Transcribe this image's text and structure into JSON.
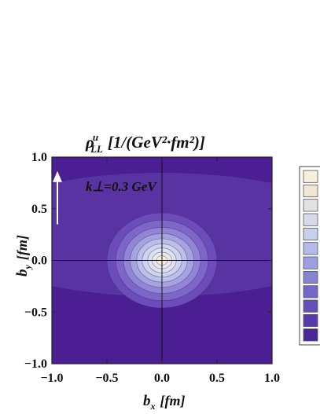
{
  "chart_data": {
    "type": "heatmap",
    "title": "ρ_LL^u [1/(GeV²·fm²)]",
    "title_parts": {
      "symbol": "ρ",
      "superscript": "u",
      "subscript": "LL",
      "unit": "[1/(GeV²·fm²)]"
    },
    "xlabel": "b_x [fm]",
    "ylabel": "b_y [fm]",
    "xlabel_parts": {
      "symbol": "b",
      "subscript": "x",
      "unit": "[fm]"
    },
    "ylabel_parts": {
      "symbol": "b",
      "subscript": "y",
      "unit": "[fm]"
    },
    "xlim": [
      -1.0,
      1.0
    ],
    "ylim": [
      -1.0,
      1.0
    ],
    "x_ticks": [
      "−1.0",
      "−0.5",
      "0.0",
      "0.5",
      "1.0"
    ],
    "y_ticks": [
      "1.0",
      "0.5",
      "0.0",
      "−0.5",
      "−1.0"
    ],
    "x_tick_values": [
      -1.0,
      -0.5,
      0.0,
      0.5,
      1.0
    ],
    "y_tick_values": [
      1.0,
      0.5,
      0.0,
      -0.5,
      -1.0
    ],
    "annotation": "k⊥=0.3 GeV",
    "annotation_arrow": {
      "x": -0.95,
      "y_from": 0.35,
      "y_to": 0.85
    },
    "center": [
      0.0,
      0.0
    ],
    "contours": [
      {
        "level": 1,
        "rx": 1.8,
        "ry": 0.6,
        "cy": 0.25
      },
      {
        "level": 2,
        "rx": 0.5,
        "ry": 0.46,
        "cy": 0.0
      },
      {
        "level": 3,
        "rx": 0.42,
        "ry": 0.39,
        "cy": 0.0
      },
      {
        "level": 4,
        "rx": 0.35,
        "ry": 0.32,
        "cy": 0.0
      },
      {
        "level": 5,
        "rx": 0.29,
        "ry": 0.26,
        "cy": 0.0
      },
      {
        "level": 6,
        "rx": 0.23,
        "ry": 0.21,
        "cy": 0.0
      },
      {
        "level": 7,
        "rx": 0.18,
        "ry": 0.16,
        "cy": 0.0
      },
      {
        "level": 8,
        "rx": 0.13,
        "ry": 0.12,
        "cy": 0.0
      },
      {
        "level": 9,
        "rx": 0.09,
        "ry": 0.08,
        "cy": 0.0
      },
      {
        "level": 10,
        "rx": 0.05,
        "ry": 0.045,
        "cy": 0.0
      }
    ],
    "colors": {
      "background": "#4b1f93",
      "levels": [
        "#5a33a3",
        "#6b4cb8",
        "#7d66c8",
        "#9285d6",
        "#a7a3e1",
        "#bcbfe8",
        "#cfd3ec",
        "#dfe2ef",
        "#ebe9e8",
        "#f4ecdb",
        "#f8f0e0"
      ]
    },
    "legend": {
      "placement": "right",
      "swatches": [
        "#f7efdc",
        "#efe6d6",
        "#e4e2e0",
        "#d8dae9",
        "#c8cfee",
        "#b3b9ea",
        "#9c9fe0",
        "#8683d4",
        "#7368c8",
        "#6450b8",
        "#553ba8",
        "#4a2796"
      ]
    }
  }
}
